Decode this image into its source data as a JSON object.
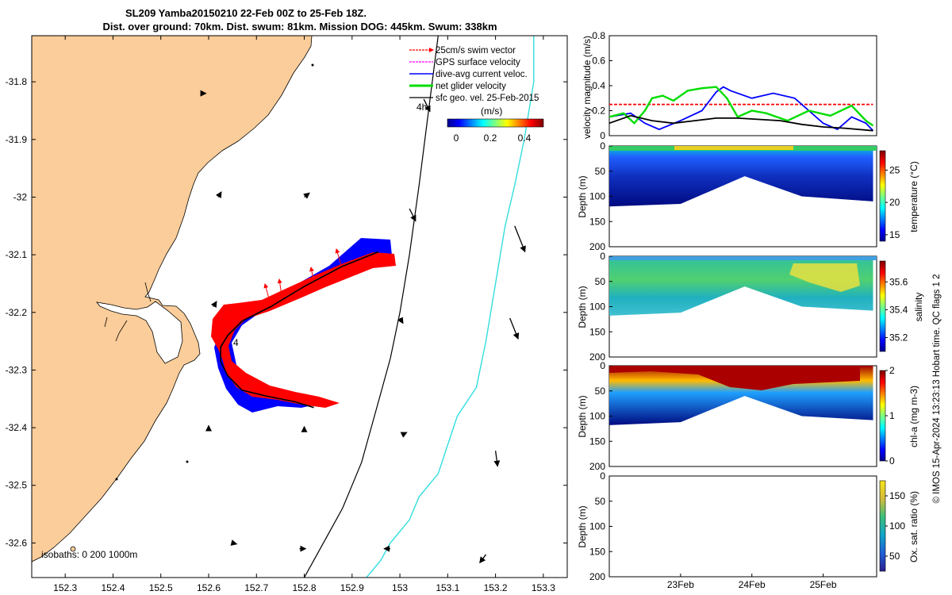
{
  "figure": {
    "title_line1": "SL209 Yamba20150210 22-Feb 00Z to 25-Feb 18Z.",
    "title_line2": "Dist. over ground: 70km. Dist. swum: 81km. Mission DOG: 445km. Swum: 338km",
    "stamp": "© IMOS 15-Apr-2024 13:23:13 Hobart time. QC flags 1  2"
  },
  "chart_data": [
    {
      "type": "map",
      "xlim": [
        152.23,
        153.35
      ],
      "ylim": [
        -32.66,
        -31.72
      ],
      "xticks": [
        152.3,
        152.4,
        152.5,
        152.6,
        152.7,
        152.8,
        152.9,
        153,
        153.1,
        153.2,
        153.3
      ],
      "xtick_labels": [
        "152.3",
        "152.4",
        "152.5",
        "152.6",
        "152.7",
        "152.8",
        "152.9",
        "153",
        "153.1",
        "153.2",
        "153.3"
      ],
      "yticks": [
        -31.8,
        -31.9,
        -32,
        -32.1,
        -32.2,
        -32.3,
        -32.4,
        -32.5,
        -32.6
      ],
      "ytick_labels": [
        "-31.8",
        "-31.9",
        "-32",
        "-32.1",
        "-32.2",
        "-32.3",
        "-32.4",
        "-32.5",
        "-32.6"
      ],
      "legend": [
        {
          "label": "25cm/s swim vector",
          "color": "#ff0000"
        },
        {
          "label": "GPS surface velocity",
          "color": "#ff00ff"
        },
        {
          "label": "dive-avg current veloc.",
          "color": "#0000ff"
        },
        {
          "label": "net glider velocity",
          "color": "#00dd00"
        },
        {
          "label": "sfc geo. vel. 25-Feb-2015",
          "color": "#000000"
        }
      ],
      "legend_placement": "top-right",
      "colorbar": {
        "label": "(m/s)",
        "range": [
          0,
          0.5
        ],
        "ticks": [
          "0",
          "0.2",
          "0.4"
        ]
      },
      "isobaths_label": "isobaths: 0   200  1000m",
      "annotations": [
        "4h",
        "4"
      ],
      "track": {
        "lon": [
          152.955,
          152.88,
          152.8,
          152.73,
          152.67,
          152.64,
          152.625,
          152.625,
          152.64,
          152.67,
          152.72,
          152.78,
          152.82
        ],
        "lat": [
          -32.095,
          -32.12,
          -32.155,
          -32.19,
          -32.215,
          -32.24,
          -32.26,
          -32.285,
          -32.31,
          -32.335,
          -32.345,
          -32.355,
          -32.365
        ]
      },
      "isobath_200": {
        "lon": [
          153.08,
          153.06,
          153.04,
          153.02,
          153.0,
          152.98,
          152.96,
          152.94,
          152.92,
          152.9,
          152.88,
          152.86,
          152.84,
          152.82,
          152.8
        ],
        "lat": [
          -31.72,
          -31.85,
          -31.98,
          -32.1,
          -32.2,
          -32.28,
          -32.34,
          -32.4,
          -32.46,
          -32.5,
          -32.54,
          -32.57,
          -32.6,
          -32.63,
          -32.66
        ]
      },
      "isobath_1000": {
        "lon": [
          153.28,
          153.28,
          153.26,
          153.24,
          153.22,
          153.2,
          153.18,
          153.16,
          153.12,
          153.1,
          153.08,
          153.04,
          153.02,
          152.98,
          152.96,
          152.93
        ],
        "lat": [
          -31.72,
          -31.8,
          -31.9,
          -31.98,
          -32.05,
          -32.15,
          -32.25,
          -32.33,
          -32.38,
          -32.43,
          -32.48,
          -32.52,
          -32.56,
          -32.6,
          -32.63,
          -32.66
        ]
      },
      "current_arrows": [
        {
          "lon": 152.59,
          "lat": -31.82,
          "u": 0.02,
          "v": 0.0
        },
        {
          "lon": 153.05,
          "lat": -31.83,
          "u": 0.06,
          "v": -0.12
        },
        {
          "lon": 152.62,
          "lat": -32.0,
          "u": 0.03,
          "v": 0.05
        },
        {
          "lon": 152.8,
          "lat": -32.0,
          "u": 0.05,
          "v": 0.04
        },
        {
          "lon": 153.02,
          "lat": -32.02,
          "u": 0.06,
          "v": -0.12
        },
        {
          "lon": 153.24,
          "lat": -32.05,
          "u": 0.1,
          "v": -0.25
        },
        {
          "lon": 152.61,
          "lat": -32.19,
          "u": 0.03,
          "v": 0.05
        },
        {
          "lon": 153.0,
          "lat": -32.21,
          "u": 0.03,
          "v": -0.05
        },
        {
          "lon": 153.23,
          "lat": -32.21,
          "u": 0.08,
          "v": -0.2
        },
        {
          "lon": 152.6,
          "lat": -32.4,
          "u": 0.0,
          "v": 0.02
        },
        {
          "lon": 152.8,
          "lat": -32.4,
          "u": 0.0,
          "v": 0.01
        },
        {
          "lon": 153.01,
          "lat": -32.41,
          "u": 0.02,
          "v": 0.01
        },
        {
          "lon": 153.2,
          "lat": -32.44,
          "u": 0.02,
          "v": -0.15
        },
        {
          "lon": 152.65,
          "lat": -32.6,
          "u": 0.04,
          "v": -0.01
        },
        {
          "lon": 152.79,
          "lat": -32.61,
          "u": 0.06,
          "v": 0.0
        },
        {
          "lon": 152.98,
          "lat": -32.61,
          "u": -0.06,
          "v": 0.0
        },
        {
          "lon": 153.18,
          "lat": -32.62,
          "u": -0.06,
          "v": -0.08
        }
      ]
    },
    {
      "type": "line",
      "ylabel": "velocity magnitude (m/s)",
      "ylim": [
        0,
        0.8
      ],
      "yticks": [
        0,
        0.2,
        0.4,
        0.6,
        0.8
      ],
      "ytick_labels": [
        "0",
        "0.2",
        "0.4",
        "0.6",
        "0.8"
      ],
      "xlim": [
        0,
        3.75
      ],
      "series": [
        {
          "color": "#ff0000",
          "style": "dashed",
          "x": [
            0,
            3.7
          ],
          "y": [
            0.25,
            0.25
          ]
        },
        {
          "color": "#0000ff",
          "x": [
            0,
            0.3,
            0.5,
            0.7,
            1.0,
            1.3,
            1.5,
            1.6,
            1.7,
            2.0,
            2.3,
            2.6,
            2.8,
            3.0,
            3.2,
            3.4,
            3.6,
            3.7
          ],
          "y": [
            0.15,
            0.18,
            0.1,
            0.05,
            0.12,
            0.2,
            0.35,
            0.39,
            0.36,
            0.3,
            0.34,
            0.3,
            0.2,
            0.1,
            0.05,
            0.15,
            0.1,
            0.04
          ]
        },
        {
          "color": "#00dd00",
          "x": [
            0,
            0.2,
            0.35,
            0.5,
            0.6,
            0.75,
            0.9,
            1.1,
            1.3,
            1.5,
            1.65,
            1.8,
            2.0,
            2.2,
            2.5,
            2.8,
            3.1,
            3.4,
            3.6,
            3.7
          ],
          "y": [
            0.15,
            0.18,
            0.1,
            0.2,
            0.3,
            0.32,
            0.28,
            0.36,
            0.38,
            0.39,
            0.3,
            0.15,
            0.2,
            0.18,
            0.12,
            0.2,
            0.16,
            0.24,
            0.12,
            0.08
          ]
        },
        {
          "color": "#000000",
          "x": [
            0,
            0.3,
            0.6,
            0.9,
            1.2,
            1.5,
            1.8,
            2.1,
            2.4,
            2.7,
            3.0,
            3.3,
            3.7
          ],
          "y": [
            0.1,
            0.16,
            0.12,
            0.1,
            0.12,
            0.14,
            0.14,
            0.13,
            0.12,
            0.09,
            0.07,
            0.06,
            0.04
          ]
        }
      ]
    },
    {
      "type": "heatmap",
      "ylabel": "Depth (m)",
      "ylim": [
        0,
        200
      ],
      "yticks": [
        0,
        50,
        100,
        150,
        200
      ],
      "ytick_labels": [
        "0",
        "50",
        "100",
        "150",
        "200"
      ],
      "colorbar": {
        "label": "temperature (°C)",
        "range": [
          14,
          28
        ],
        "ticks": [
          15,
          20,
          25
        ],
        "tick_labels": [
          "15",
          "20",
          "25"
        ]
      },
      "bottom_profile": [
        {
          "t": 0,
          "d": 120
        },
        {
          "t": 1.0,
          "d": 115
        },
        {
          "t": 1.9,
          "d": 60
        },
        {
          "t": 2.7,
          "d": 100
        },
        {
          "t": 3.7,
          "d": 110
        }
      ]
    },
    {
      "type": "heatmap",
      "ylabel": "Depth (m)",
      "ylim": [
        0,
        200
      ],
      "yticks": [
        0,
        50,
        100,
        150,
        200
      ],
      "ytick_labels": [
        "0",
        "50",
        "100",
        "150",
        "200"
      ],
      "colorbar": {
        "label": "salinity",
        "range": [
          35.1,
          35.75
        ],
        "ticks": [
          35.2,
          35.4,
          35.6
        ],
        "tick_labels": [
          "35.2",
          "35.4",
          "35.6"
        ]
      },
      "bottom_profile": [
        {
          "t": 0,
          "d": 118
        },
        {
          "t": 1.0,
          "d": 112
        },
        {
          "t": 1.9,
          "d": 60
        },
        {
          "t": 2.7,
          "d": 100
        },
        {
          "t": 3.7,
          "d": 108
        }
      ]
    },
    {
      "type": "heatmap",
      "ylabel": "Depth (m)",
      "ylim": [
        0,
        200
      ],
      "yticks": [
        0,
        50,
        100,
        150,
        200
      ],
      "ytick_labels": [
        "0",
        "50",
        "100",
        "150",
        "200"
      ],
      "colorbar": {
        "label": "chl-a (mg m-3)",
        "range": [
          0,
          2
        ],
        "ticks": [
          0,
          1,
          2
        ],
        "tick_labels": [
          "0",
          "1",
          "2"
        ]
      },
      "bottom_profile": [
        {
          "t": 0,
          "d": 118
        },
        {
          "t": 1.0,
          "d": 112
        },
        {
          "t": 1.9,
          "d": 60
        },
        {
          "t": 2.7,
          "d": 100
        },
        {
          "t": 3.7,
          "d": 108
        }
      ]
    },
    {
      "type": "heatmap",
      "ylabel": "Depth (m)",
      "ylim": [
        0,
        200
      ],
      "yticks": [
        0,
        50,
        100,
        150,
        200
      ],
      "ytick_labels": [
        "0",
        "50",
        "100",
        "150",
        "200"
      ],
      "xticks": [
        1,
        2,
        3
      ],
      "xtick_labels": [
        "23Feb",
        "24Feb",
        "25Feb"
      ],
      "colorbar": {
        "label": "Ox. sat. ratio (%)",
        "range": [
          25,
          175
        ],
        "ticks": [
          50,
          100,
          150
        ],
        "tick_labels": [
          "50",
          "100",
          "150"
        ]
      }
    }
  ]
}
